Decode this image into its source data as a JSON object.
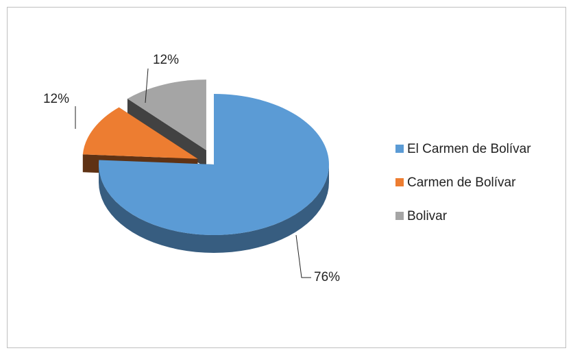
{
  "chart_data": {
    "type": "pie",
    "categories": [
      "El Carmen de Bolívar",
      "Carmen de Bolívar",
      "Bolivar"
    ],
    "values": [
      76,
      12,
      12
    ],
    "value_labels": [
      "76%",
      "12%",
      "12%"
    ],
    "colors": [
      "#5b9bd5",
      "#ed7d31",
      "#a5a5a5"
    ],
    "legend": "right"
  }
}
